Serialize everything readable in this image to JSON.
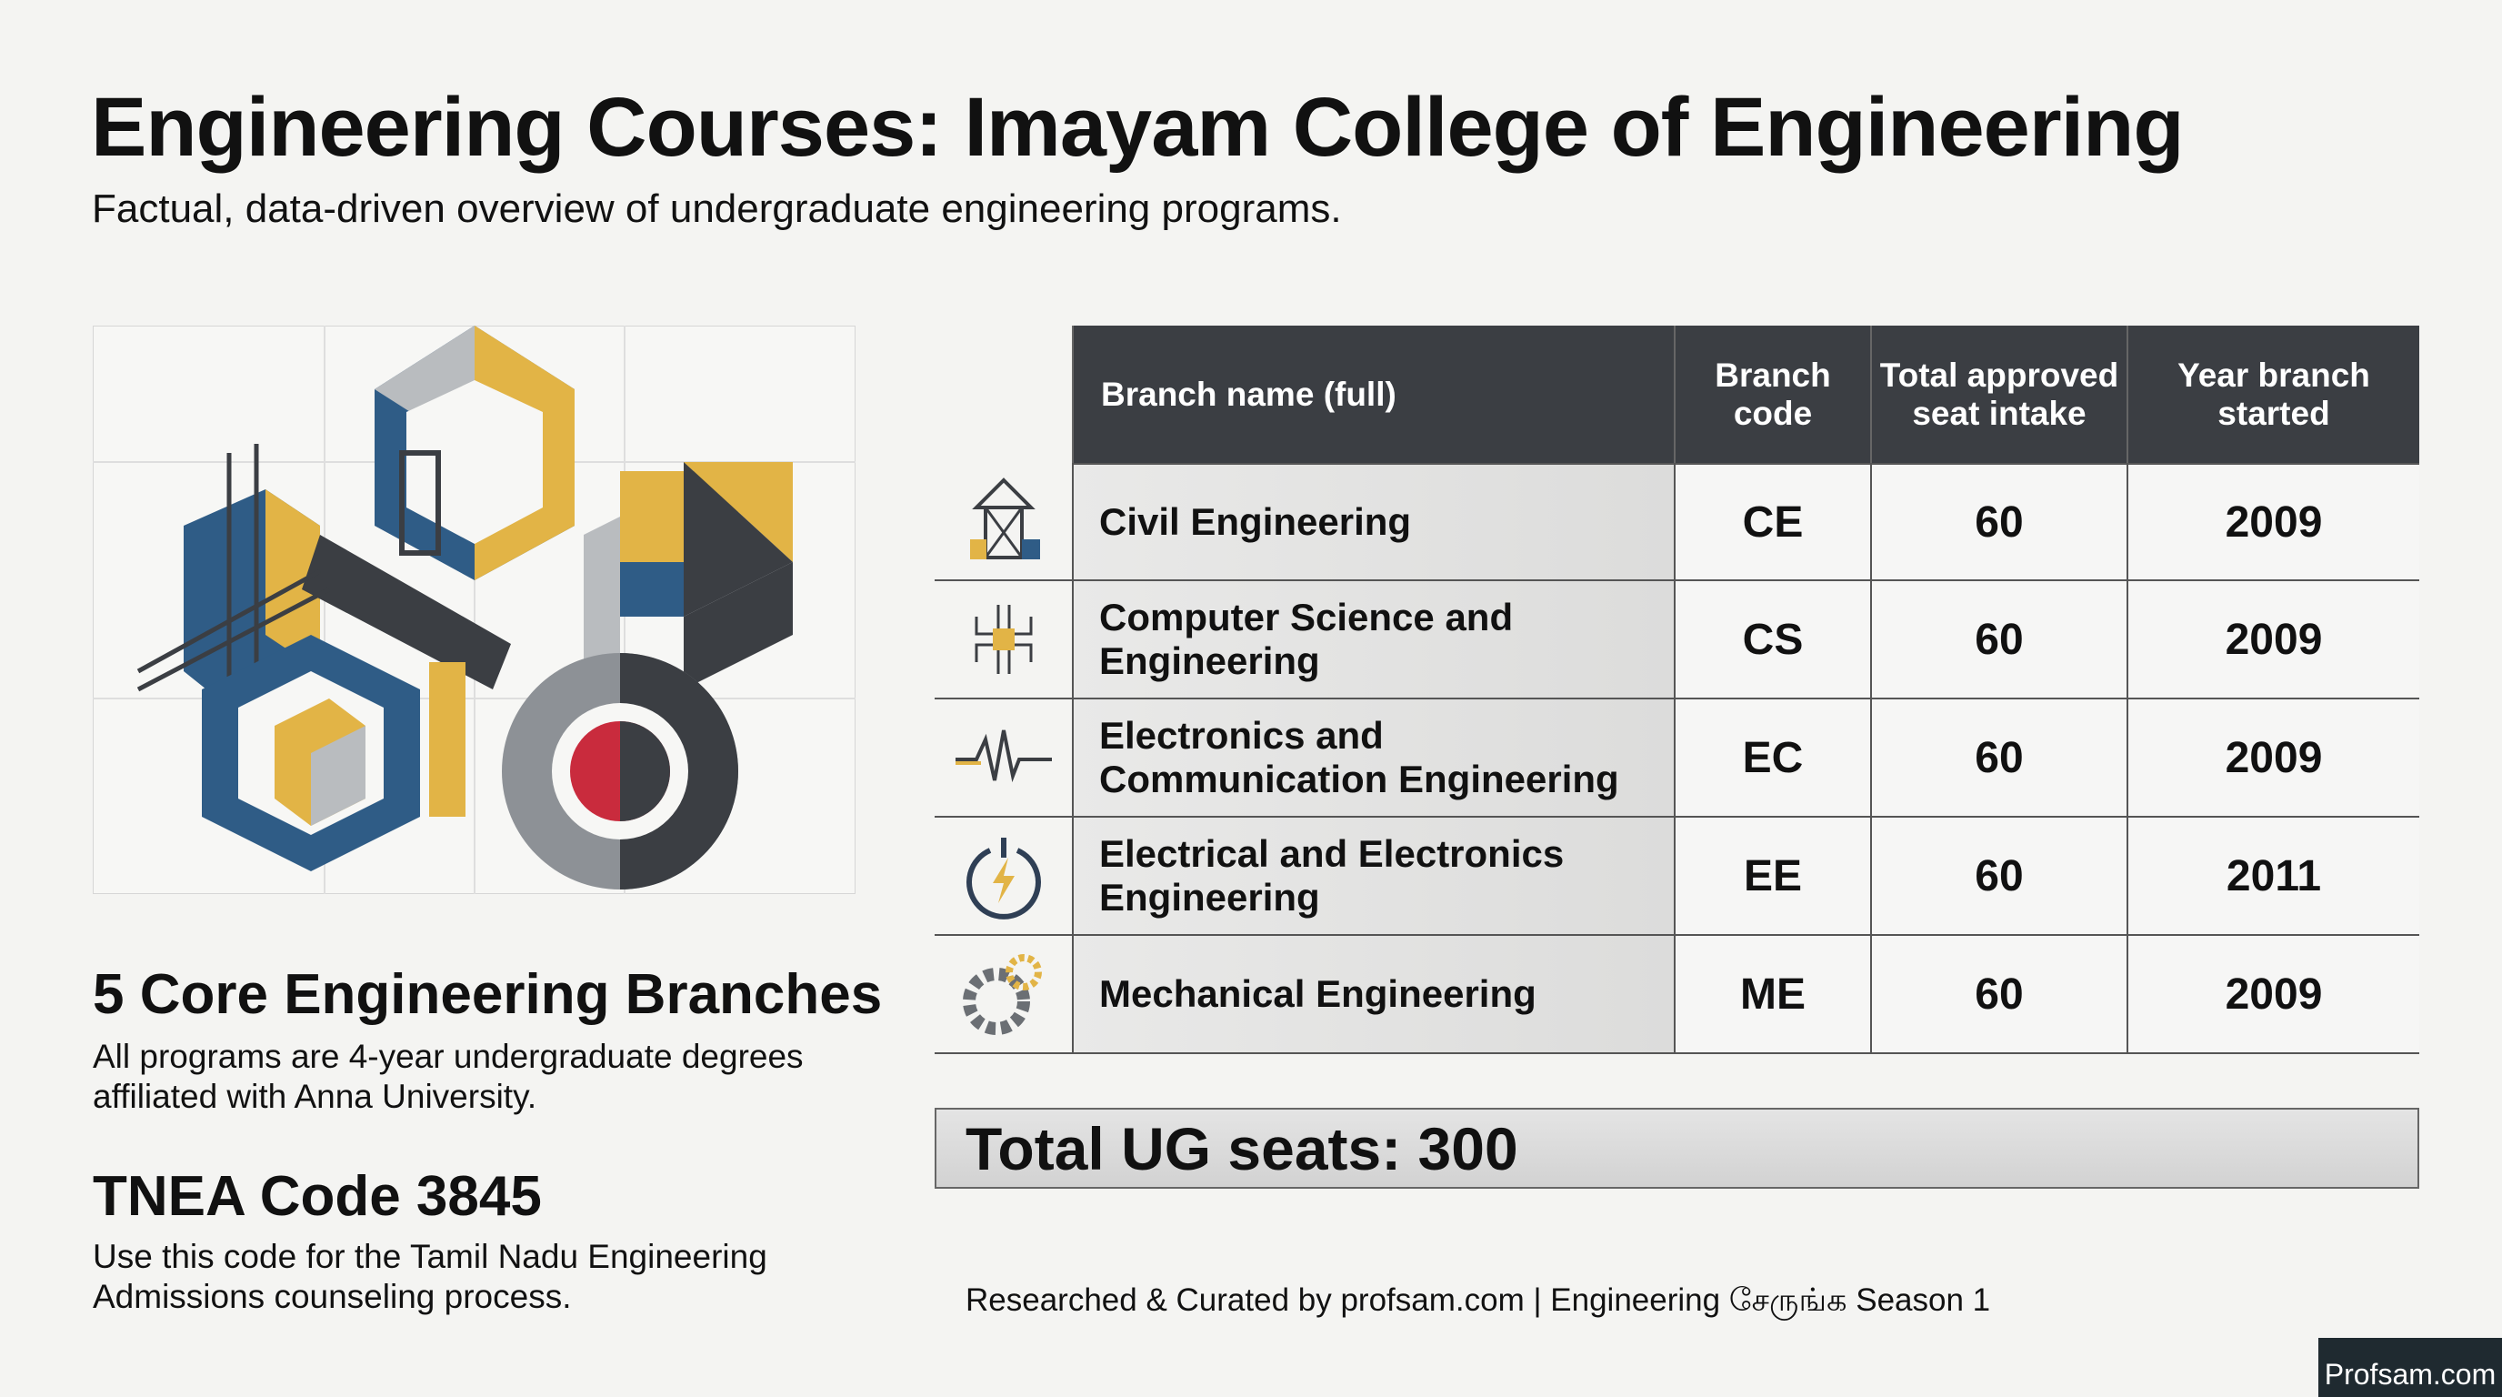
{
  "header": {
    "title": "Engineering Courses: Imayam College of Engineering",
    "subtitle": "Factual, data-driven overview of undergraduate engineering programs."
  },
  "summary": [
    {
      "heading": "5 Core Engineering Branches",
      "text": "All programs are 4-year undergraduate degrees affiliated with Anna University."
    },
    {
      "heading": "TNEA Code 3845",
      "text": "Use this code for the Tamil Nadu Engineering Admissions counseling process."
    }
  ],
  "table": {
    "columns": [
      "Branch name (full)",
      "Branch code",
      "Total approved seat intake",
      "Year branch started"
    ],
    "rows": [
      [
        "Civil Engineering",
        "CE",
        60,
        2009
      ],
      [
        "Computer Science and Engineering",
        "CS",
        60,
        2009
      ],
      [
        "Electronics and Communication Engineering",
        "EC",
        60,
        2009
      ],
      [
        "Electrical and Electronics Engineering",
        "EE",
        60,
        2011
      ],
      [
        "Mechanical Engineering",
        "ME",
        60,
        2009
      ]
    ]
  },
  "total": "Total UG seats: 300",
  "footer": "Researched & Curated by profsam.com | Engineering சேருங்க Season 1",
  "badge": "Profsam.com"
}
